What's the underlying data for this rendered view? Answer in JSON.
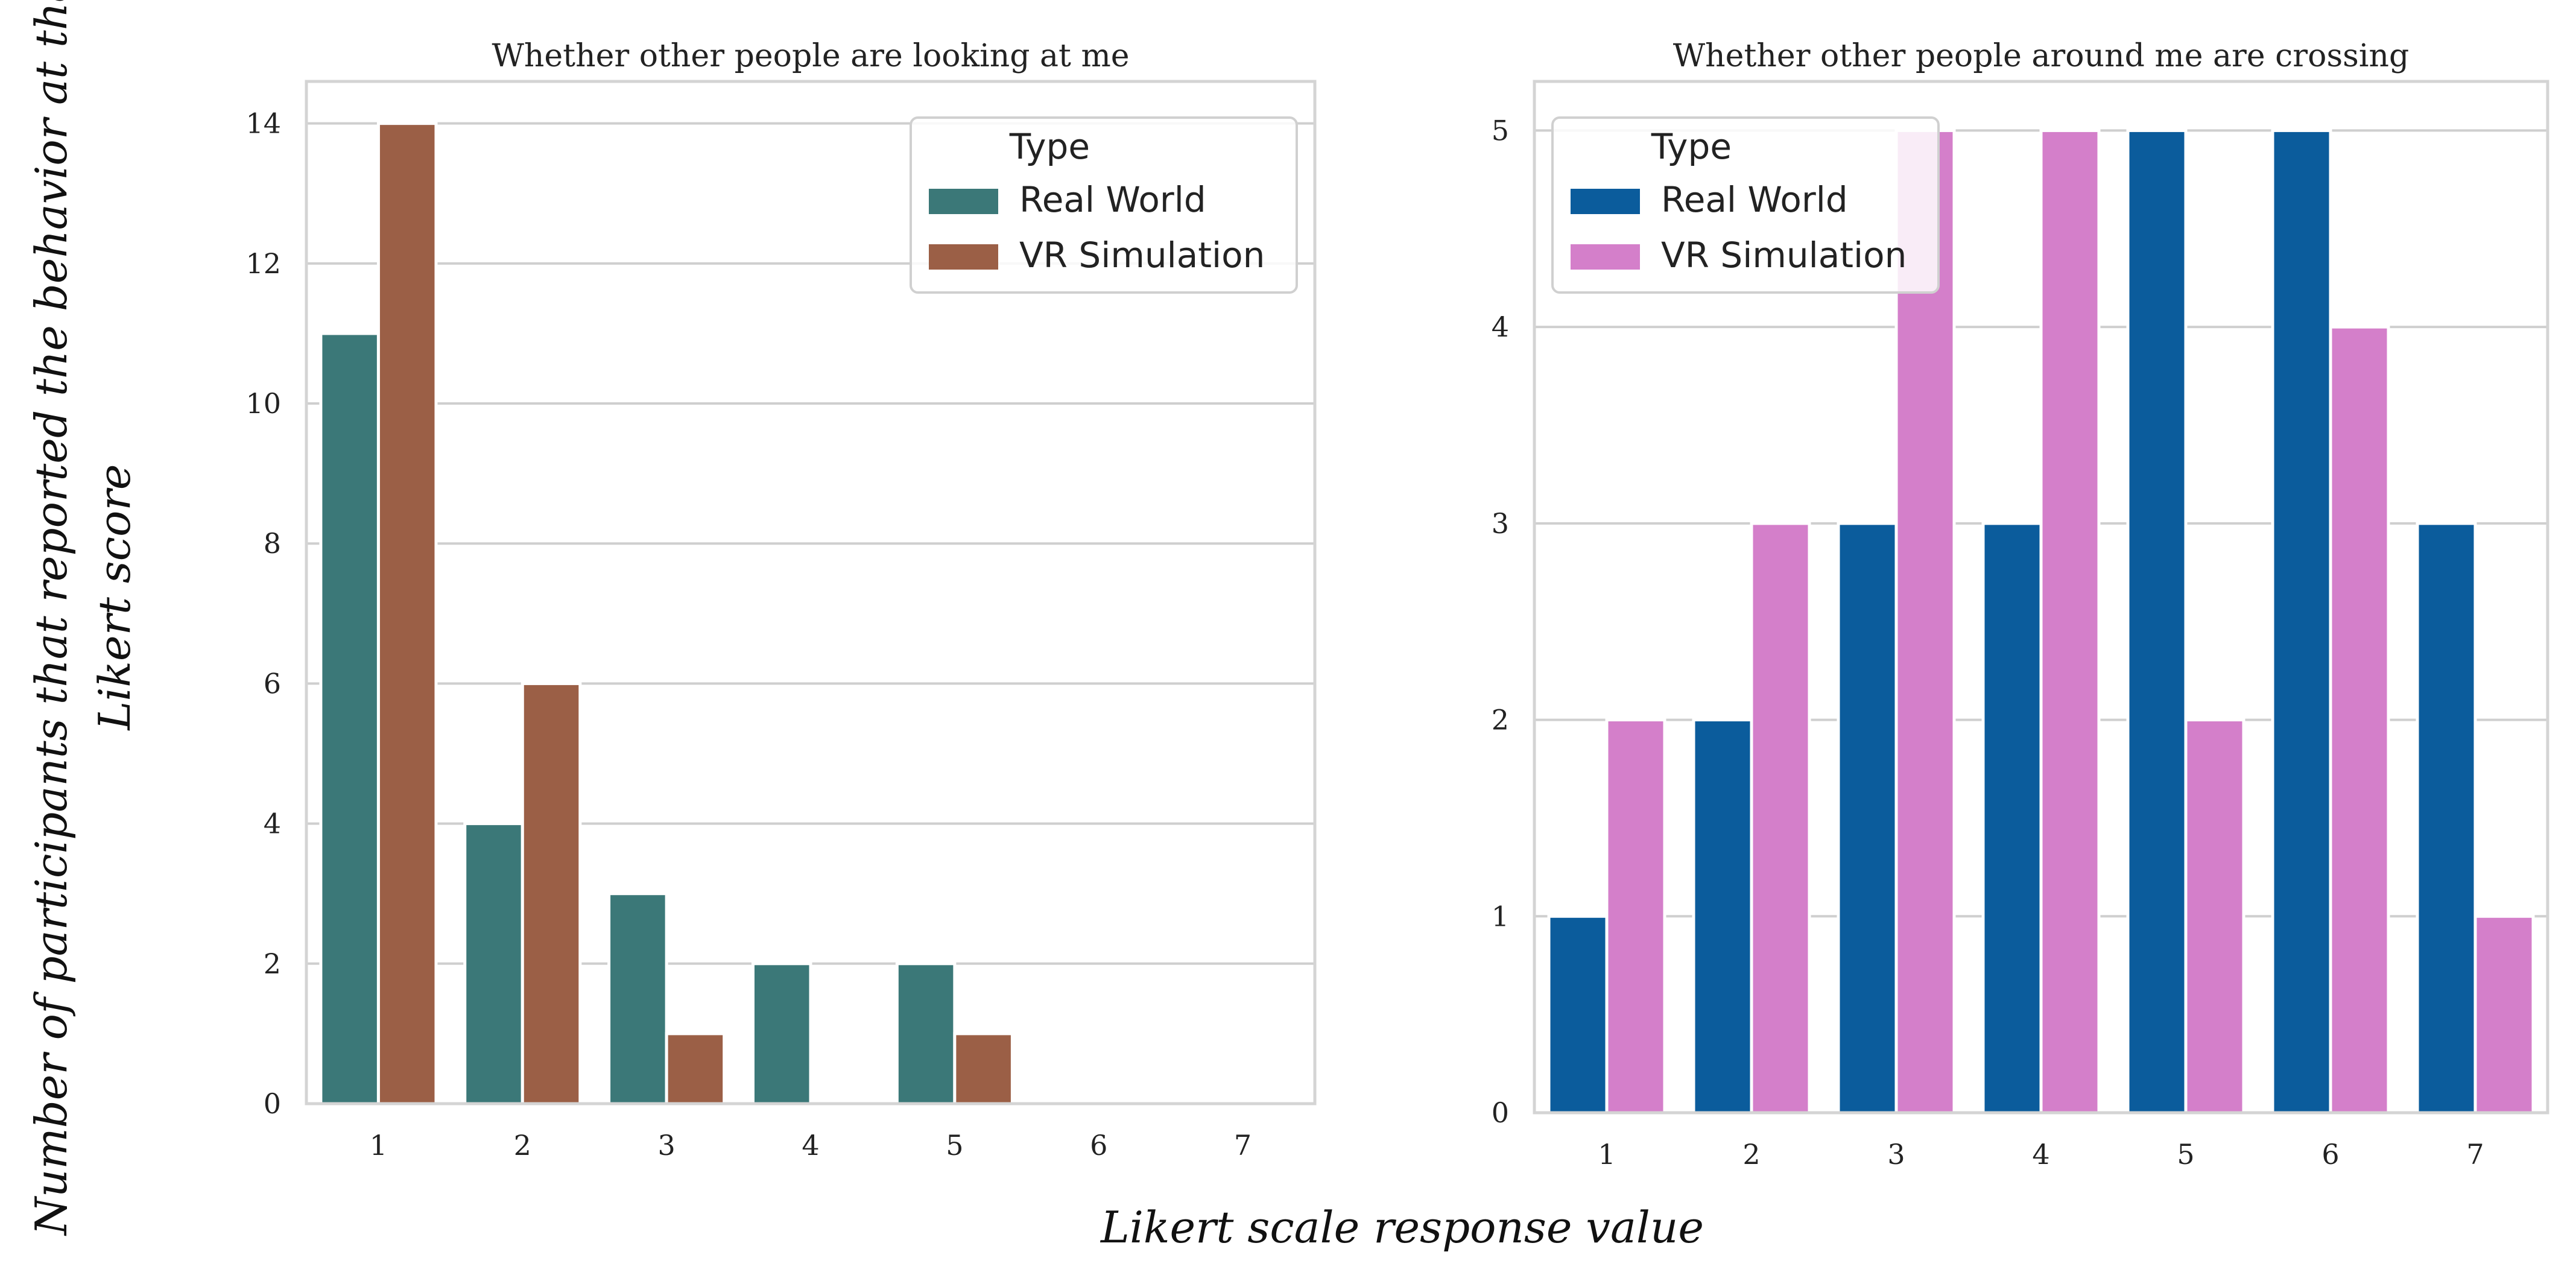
{
  "figure": {
    "ylabel_line1": "Number of participants that reported the behavior at that",
    "ylabel_line2": "Likert score",
    "xlabel": "Likert scale response value"
  },
  "chart_data": [
    {
      "type": "bar",
      "title": "Whether other people are looking at me",
      "categories": [
        "1",
        "2",
        "3",
        "4",
        "5",
        "6",
        "7"
      ],
      "series": [
        {
          "name": "Real World",
          "color": "#3b7878",
          "values": [
            11,
            4,
            3,
            2,
            2,
            0,
            0
          ]
        },
        {
          "name": "VR Simulation",
          "color": "#9b5f46",
          "values": [
            14,
            6,
            1,
            0,
            1,
            0,
            0
          ]
        }
      ],
      "yticks": [
        0,
        2,
        4,
        6,
        8,
        10,
        12,
        14
      ],
      "ylim": [
        0,
        14.6
      ],
      "legend": {
        "title": "Type",
        "position": "top-right"
      },
      "grid": true
    },
    {
      "type": "bar",
      "title": "Whether other people around me are crossing",
      "categories": [
        "1",
        "2",
        "3",
        "4",
        "5",
        "6",
        "7"
      ],
      "series": [
        {
          "name": "Real World",
          "color": "#0b5c9c",
          "values": [
            1,
            2,
            3,
            3,
            5,
            5,
            3
          ]
        },
        {
          "name": "VR Simulation",
          "color": "#d47fca",
          "values": [
            2,
            3,
            5,
            5,
            2,
            4,
            1
          ]
        }
      ],
      "yticks": [
        0,
        1,
        2,
        3,
        4,
        5
      ],
      "ylim": [
        0,
        5.25
      ],
      "legend": {
        "title": "Type",
        "position": "top-left"
      },
      "grid": true
    }
  ]
}
